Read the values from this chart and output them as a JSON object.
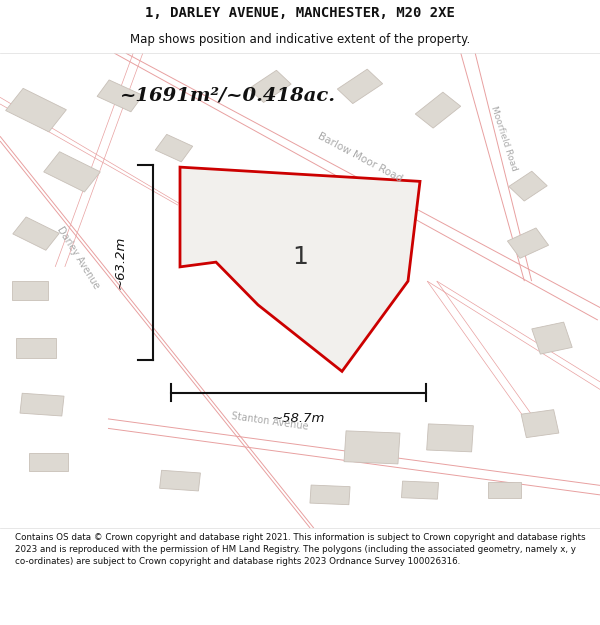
{
  "title_line1": "1, DARLEY AVENUE, MANCHESTER, M20 2XE",
  "title_line2": "Map shows position and indicative extent of the property.",
  "area_text": "~1691m²/~0.418ac.",
  "dim_width": "~58.7m",
  "dim_height": "~63.2m",
  "plot_number": "1",
  "footer_text": "Contains OS data © Crown copyright and database right 2021. This information is subject to Crown copyright and database rights 2023 and is reproduced with the permission of HM Land Registry. The polygons (including the associated geometry, namely x, y co-ordinates) are subject to Crown copyright and database rights 2023 Ordnance Survey 100026316.",
  "map_bg": "#f2f0ed",
  "road_line_color": "#e8a0a0",
  "plot_fill": "#f2f0ed",
  "plot_stroke": "#cc0000",
  "building_fill": "#ddd9d2",
  "building_stroke": "#c8c0b8",
  "dim_line_color": "#111111",
  "text_color": "#111111",
  "road_label_color": "#aaaaaa",
  "area_text_color": "#111111",
  "title_color": "#111111",
  "footer_color": "#111111"
}
